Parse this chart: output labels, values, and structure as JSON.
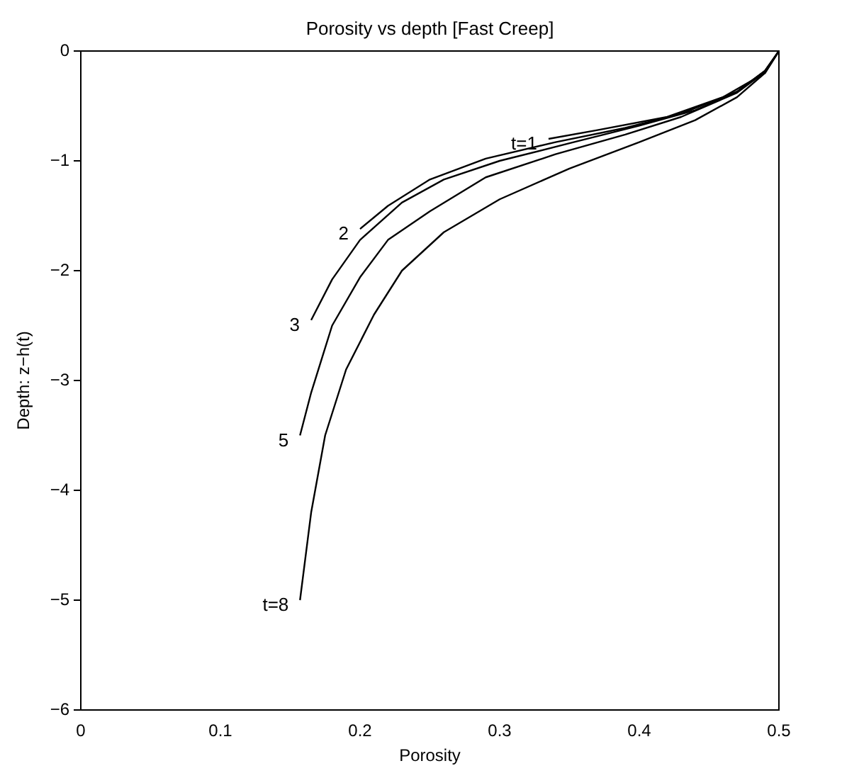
{
  "chart_data": {
    "type": "line",
    "title": "Porosity vs depth [Fast Creep]",
    "xlabel": "Porosity",
    "ylabel": "Depth: z−h(t)",
    "xlim": [
      0,
      0.5
    ],
    "xticks": [
      0,
      0.1,
      0.2,
      0.3,
      0.4,
      0.5
    ],
    "ylim": [
      -6,
      0
    ],
    "yticks": [
      -6,
      -5,
      -4,
      -3,
      -2,
      -1,
      0
    ],
    "grid": false,
    "legend": false,
    "marker": "none",
    "line_style": "solid",
    "series": [
      {
        "name": "t=1",
        "color": "#000000",
        "x": [
          0.335,
          0.37,
          0.42,
          0.46,
          0.49,
          0.5
        ],
        "values": [
          -0.8,
          -0.72,
          -0.6,
          -0.42,
          -0.2,
          0
        ]
      },
      {
        "name": "2",
        "color": "#000000",
        "x": [
          0.2,
          0.22,
          0.25,
          0.29,
          0.34,
          0.39,
          0.43,
          0.47,
          0.49,
          0.5
        ],
        "values": [
          -1.62,
          -1.41,
          -1.17,
          -0.98,
          -0.83,
          -0.7,
          -0.57,
          -0.37,
          -0.18,
          0
        ]
      },
      {
        "name": "3",
        "color": "#000000",
        "x": [
          0.165,
          0.18,
          0.2,
          0.23,
          0.26,
          0.3,
          0.35,
          0.4,
          0.44,
          0.47,
          0.49,
          0.5
        ],
        "values": [
          -2.45,
          -2.08,
          -1.72,
          -1.38,
          -1.17,
          -1.0,
          -0.84,
          -0.68,
          -0.54,
          -0.37,
          -0.18,
          0
        ]
      },
      {
        "name": "5",
        "color": "#000000",
        "x": [
          0.157,
          0.165,
          0.18,
          0.2,
          0.22,
          0.25,
          0.29,
          0.34,
          0.39,
          0.43,
          0.47,
          0.49,
          0.5
        ],
        "values": [
          -3.5,
          -3.11,
          -2.5,
          -2.06,
          -1.72,
          -1.46,
          -1.15,
          -0.94,
          -0.76,
          -0.6,
          -0.38,
          -0.19,
          0
        ]
      },
      {
        "name": "t=8",
        "color": "#000000",
        "x": [
          0.157,
          0.165,
          0.175,
          0.19,
          0.21,
          0.23,
          0.26,
          0.3,
          0.35,
          0.4,
          0.44,
          0.47,
          0.49,
          0.5
        ],
        "values": [
          -5.0,
          -4.2,
          -3.5,
          -2.9,
          -2.4,
          -2.0,
          -1.65,
          -1.35,
          -1.07,
          -0.83,
          -0.63,
          -0.42,
          -0.2,
          0
        ]
      }
    ]
  }
}
